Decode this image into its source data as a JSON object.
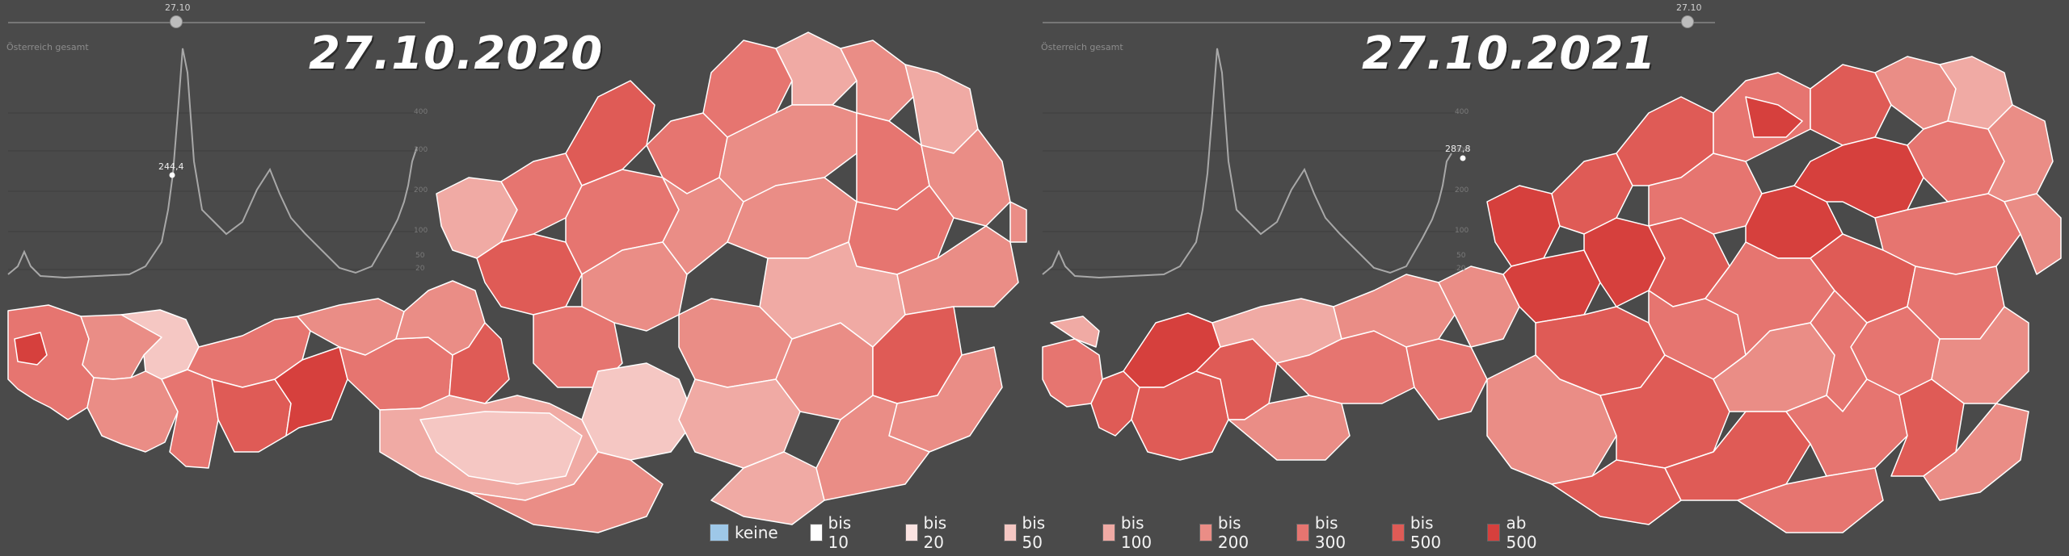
{
  "panels": [
    {
      "date_title": "27.10.2020",
      "slider_value": "27.10",
      "chart_label": "Österreich gesamt",
      "peak_value": "244,4",
      "y_ticks": [
        "400",
        "300",
        "200",
        "100",
        "50",
        "20"
      ]
    },
    {
      "date_title": "27.10.2021",
      "slider_value": "27.10",
      "chart_label": "Österreich gesamt",
      "peak_value": "287,8",
      "y_ticks": [
        "400",
        "300",
        "200",
        "100",
        "50",
        "20"
      ]
    }
  ],
  "legend": [
    {
      "label": "keine",
      "color": "#9ec8e8"
    },
    {
      "label": "bis 10",
      "color": "#ffffff"
    },
    {
      "label": "bis 20",
      "color": "#fbe3e1"
    },
    {
      "label": "bis 50",
      "color": "#f5c7c3"
    },
    {
      "label": "bis 100",
      "color": "#f0aaa4"
    },
    {
      "label": "bis 200",
      "color": "#ea8d86"
    },
    {
      "label": "bis 300",
      "color": "#e67570"
    },
    {
      "label": "bis 500",
      "color": "#df5b56"
    },
    {
      "label": "ab 500",
      "color": "#d6403d"
    }
  ]
}
